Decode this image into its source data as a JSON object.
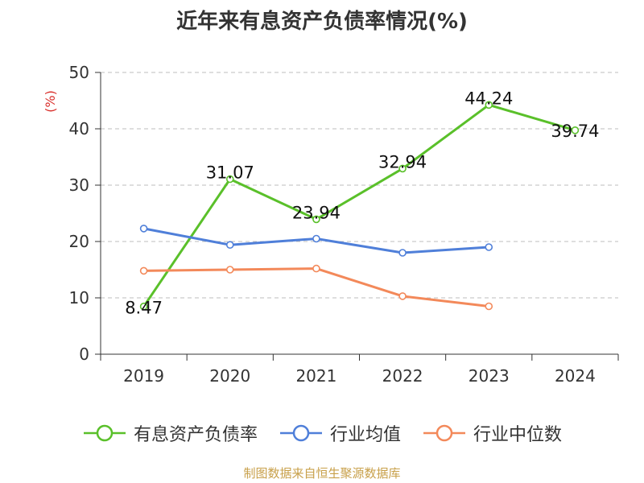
{
  "chart_data": {
    "type": "line",
    "title": "近年来有息资产负债率情况(%)",
    "ylabel": "(%)",
    "xlabel": "",
    "categories": [
      "2019",
      "2020",
      "2021",
      "2022",
      "2023",
      "2024"
    ],
    "ylim": [
      0,
      50
    ],
    "yticks": [
      0,
      10,
      20,
      30,
      40,
      50
    ],
    "grid": true,
    "legend_position": "bottom",
    "series": [
      {
        "name": "有息资产负债率",
        "color": "#5ac02a",
        "values": [
          8.47,
          31.07,
          23.94,
          32.94,
          44.24,
          39.74
        ],
        "labels": [
          "8.47",
          "31.07",
          "23.94",
          "32.94",
          "44.24",
          "39.74"
        ],
        "show_labels": true
      },
      {
        "name": "行业均值",
        "color": "#4f7fd9",
        "values": [
          22.3,
          19.4,
          20.5,
          18.0,
          19.0,
          null
        ],
        "show_labels": false
      },
      {
        "name": "行业中位数",
        "color": "#f3895a",
        "values": [
          14.8,
          15.0,
          15.2,
          10.3,
          8.5,
          null
        ],
        "show_labels": false
      }
    ],
    "source": "制图数据来自恒生聚源数据库"
  }
}
